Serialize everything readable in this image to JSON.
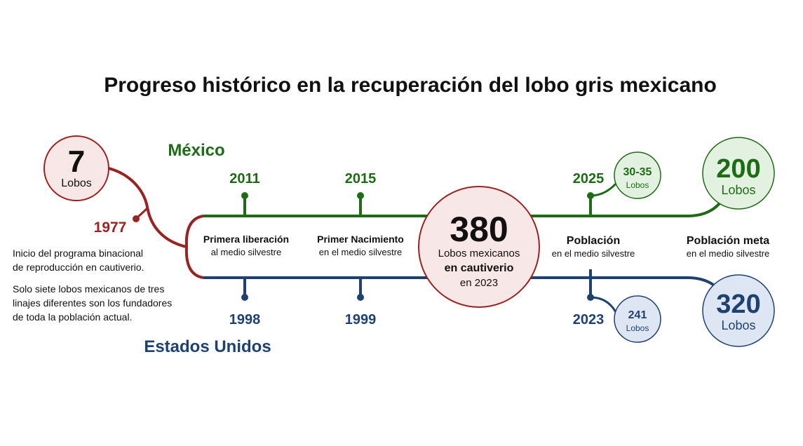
{
  "title": "Progreso histórico en la recuperación del lobo gris mexicano",
  "colors": {
    "mexico": "#1e6b15",
    "usa": "#1d4272",
    "origin": "#9b2220",
    "text": "#111111"
  },
  "origin": {
    "count": "7",
    "unit": "Lobos",
    "year": "1977",
    "desc_1": [
      "Inicio del programa binacional",
      "de reproducción en cautiverio."
    ],
    "desc_2": [
      "Solo siete lobos mexicanos de tres",
      "linajes diferentes son los fundadores",
      "de toda la población actual."
    ]
  },
  "mexico": {
    "label": "México",
    "years": [
      "2011",
      "2015",
      "2025"
    ],
    "bubble": {
      "count": "30-35",
      "unit": "Lobos"
    },
    "goal": {
      "count": "200",
      "unit": "Lobos"
    }
  },
  "usa": {
    "label": "Estados Unidos",
    "years": [
      "1998",
      "1999",
      "2023"
    ],
    "bubble": {
      "count": "241",
      "unit": "Lobos"
    },
    "goal": {
      "count": "320",
      "unit": "Lobos"
    }
  },
  "milestones": [
    {
      "title": "Primera liberación",
      "sub": "al medio silvestre"
    },
    {
      "title": "Primer Nacimiento",
      "sub": "en el medio silvestre"
    },
    {
      "title": "Población",
      "sub": "en el medio silvestre"
    },
    {
      "title": "Población meta",
      "sub": "en el medio silvestre"
    }
  ],
  "captivity": {
    "count": "380",
    "line_1": "Lobos mexicanos",
    "line_2": "en cautiverio",
    "line_3": "en 2023"
  }
}
